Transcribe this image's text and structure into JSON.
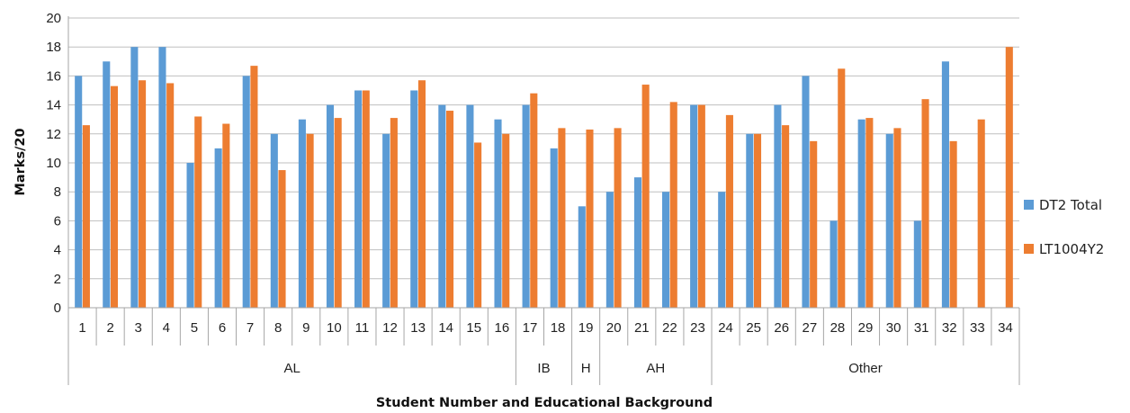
{
  "chart_data": {
    "type": "bar",
    "xlabel": "Student Number and Educational Background",
    "ylabel": "Marks/20",
    "ylim": [
      0,
      20
    ],
    "yticks": [
      "0",
      "2",
      "4",
      "6",
      "8",
      "10",
      "12",
      "14",
      "16",
      "18",
      "20"
    ],
    "grid": true,
    "legend_position": "right",
    "categories": [
      "1",
      "2",
      "3",
      "4",
      "5",
      "6",
      "7",
      "8",
      "9",
      "10",
      "11",
      "12",
      "13",
      "14",
      "15",
      "16",
      "17",
      "18",
      "19",
      "20",
      "21",
      "22",
      "23",
      "24",
      "25",
      "26",
      "27",
      "28",
      "29",
      "30",
      "31",
      "32",
      "33",
      "34"
    ],
    "groups": [
      {
        "label": "AL",
        "count": 16
      },
      {
        "label": "IB",
        "count": 2
      },
      {
        "label": "H",
        "count": 1
      },
      {
        "label": "AH",
        "count": 4
      },
      {
        "label": "Other",
        "count": 11
      }
    ],
    "series": [
      {
        "name": "DT2 Total",
        "color": "#5B9BD5",
        "values": [
          16,
          17,
          18,
          18,
          10,
          11,
          16,
          12,
          13,
          14,
          15,
          12,
          15,
          14,
          14,
          13,
          14,
          11,
          7,
          8,
          9,
          8,
          14,
          8,
          12,
          14,
          16,
          6,
          13,
          12,
          6,
          17,
          0,
          0
        ]
      },
      {
        "name": "LT1004Y2",
        "color": "#ED7D31",
        "values": [
          12.6,
          15.3,
          15.7,
          15.5,
          13.2,
          12.7,
          16.7,
          9.5,
          12,
          13.1,
          15,
          13.1,
          15.7,
          13.6,
          11.4,
          12,
          14.8,
          12.4,
          12.3,
          12.4,
          15.4,
          14.2,
          14,
          13.3,
          12,
          12.6,
          11.5,
          16.5,
          13.1,
          12.4,
          14.4,
          11.5,
          13,
          18
        ]
      }
    ]
  }
}
